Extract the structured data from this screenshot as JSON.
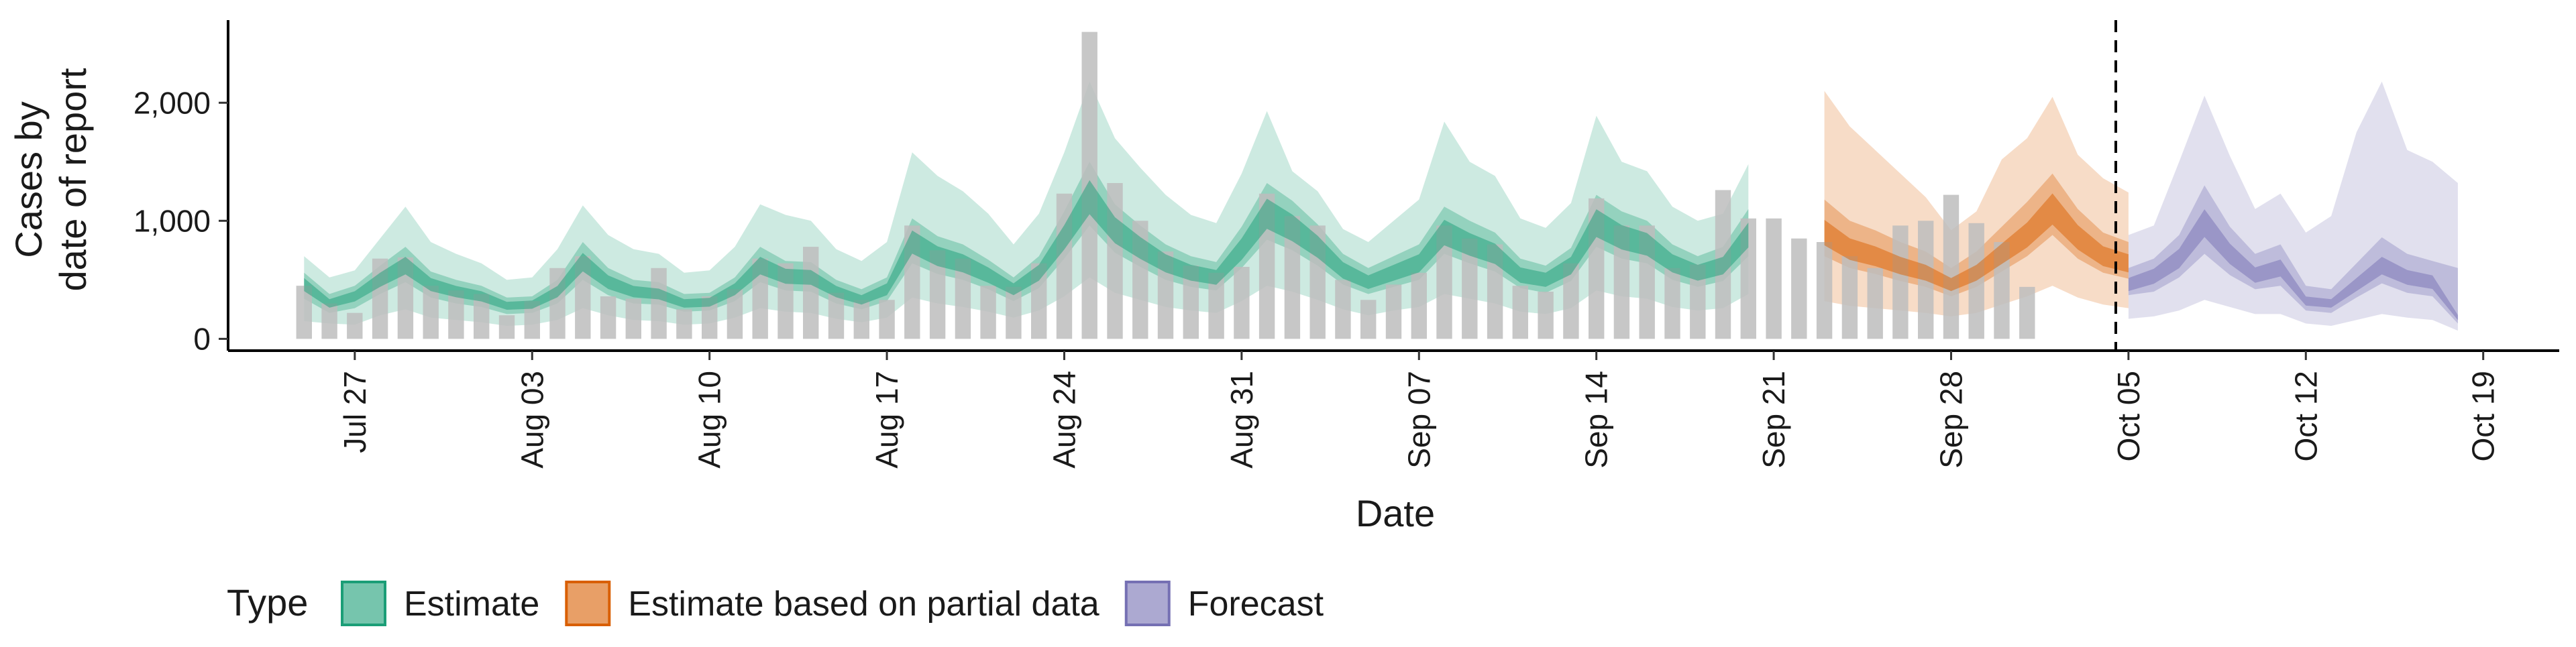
{
  "chart_data": {
    "type": "area",
    "xlabel": "Date",
    "ylabel_lines": [
      "Cases by",
      "date of report"
    ],
    "ylim": [
      -100,
      2700
    ],
    "y_ticks": [
      0,
      1000,
      2000
    ],
    "y_tick_labels": [
      "0",
      "1,000",
      "2,000"
    ],
    "x_ticks": [
      "2020-07-27",
      "2020-08-03",
      "2020-08-10",
      "2020-08-17",
      "2020-08-24",
      "2020-08-31",
      "2020-09-07",
      "2020-09-14",
      "2020-09-21",
      "2020-09-28",
      "2020-10-05",
      "2020-10-12",
      "2020-10-19"
    ],
    "x_tick_labels": [
      "Jul 27",
      "Aug 03",
      "Aug 10",
      "Aug 17",
      "Aug 24",
      "Aug 31",
      "Sep 07",
      "Sep 14",
      "Sep 21",
      "Sep 28",
      "Oct 05",
      "Oct 12",
      "Oct 19"
    ],
    "xlim": [
      "2020-07-22",
      "2020-10-22"
    ],
    "forecast_line_date": "2020-10-04.5",
    "grid": false,
    "legend_position": "bottom",
    "bars": {
      "start_date": "2020-07-25",
      "color": "#bdbdbd",
      "values": [
        450,
        300,
        220,
        680,
        690,
        450,
        410,
        380,
        200,
        320,
        600,
        700,
        360,
        340,
        600,
        250,
        360,
        420,
        680,
        640,
        780,
        390,
        330,
        330,
        960,
        750,
        680,
        450,
        440,
        640,
        1230,
        2600,
        1320,
        1000,
        740,
        620,
        560,
        610,
        1230,
        1040,
        960,
        500,
        330,
        460,
        560,
        960,
        850,
        800,
        450,
        400,
        640,
        1190,
        960,
        960,
        600,
        630,
        1260,
        1020,
        1020,
        850,
        820,
        700,
        600,
        960,
        1000,
        1220,
        980,
        820,
        440
      ]
    },
    "series": [
      {
        "name": "Estimate",
        "color": "#1b9e77",
        "start_date": "2020-07-25",
        "median": [
          460,
          300,
          360,
          500,
          620,
          460,
          400,
          360,
          280,
          290,
          400,
          650,
          480,
          400,
          380,
          300,
          310,
          420,
          620,
          530,
          520,
          400,
          330,
          420,
          820,
          700,
          640,
          540,
          420,
          560,
          860,
          1200,
          920,
          770,
          640,
          560,
          520,
          760,
          1060,
          940,
          780,
          580,
          480,
          560,
          640,
          900,
          800,
          720,
          540,
          500,
          620,
          980,
          860,
          800,
          640,
          560,
          620,
          880
        ],
        "lower90": [
          150,
          130,
          120,
          200,
          250,
          180,
          160,
          140,
          110,
          120,
          160,
          260,
          200,
          160,
          150,
          120,
          130,
          180,
          260,
          230,
          220,
          170,
          140,
          180,
          350,
          300,
          270,
          230,
          180,
          240,
          360,
          520,
          390,
          330,
          270,
          240,
          220,
          320,
          450,
          400,
          330,
          250,
          200,
          240,
          270,
          380,
          340,
          300,
          230,
          210,
          260,
          410,
          360,
          340,
          270,
          240,
          260,
          380
        ],
        "upper90": [
          700,
          520,
          580,
          850,
          1120,
          820,
          720,
          640,
          500,
          520,
          760,
          1130,
          880,
          760,
          720,
          560,
          580,
          780,
          1140,
          1050,
          1000,
          760,
          660,
          820,
          1580,
          1380,
          1250,
          1060,
          800,
          1060,
          1580,
          2180,
          1700,
          1450,
          1220,
          1050,
          980,
          1400,
          1930,
          1420,
          1250,
          930,
          820,
          1000,
          1180,
          1840,
          1500,
          1380,
          1020,
          940,
          1150,
          1890,
          1500,
          1420,
          1120,
          1000,
          1060,
          1480
        ],
        "lower50": [
          340,
          220,
          260,
          380,
          480,
          350,
          300,
          270,
          210,
          220,
          300,
          500,
          370,
          300,
          290,
          230,
          240,
          320,
          480,
          410,
          400,
          300,
          250,
          320,
          640,
          550,
          500,
          420,
          320,
          430,
          680,
          960,
          730,
          610,
          500,
          440,
          410,
          600,
          840,
          750,
          620,
          460,
          380,
          440,
          500,
          720,
          640,
          570,
          430,
          390,
          490,
          780,
          680,
          640,
          500,
          440,
          490,
          700
        ],
        "upper50": [
          560,
          380,
          450,
          620,
          780,
          570,
          500,
          450,
          350,
          360,
          500,
          820,
          600,
          500,
          480,
          380,
          390,
          520,
          780,
          660,
          650,
          500,
          420,
          520,
          1020,
          870,
          800,
          670,
          520,
          700,
          1080,
          1500,
          1140,
          960,
          800,
          700,
          650,
          950,
          1320,
          1170,
          970,
          720,
          600,
          700,
          800,
          1120,
          1000,
          900,
          680,
          620,
          770,
          1220,
          1080,
          1000,
          800,
          700,
          780,
          1100
        ]
      },
      {
        "name": "Estimate based on partial data",
        "color": "#d95f02",
        "start_date": "2020-09-23",
        "median": [
          900,
          760,
          700,
          620,
          560,
          460,
          560,
          720,
          880,
          1100,
          860,
          700,
          640
        ],
        "lower90": [
          320,
          280,
          260,
          240,
          220,
          190,
          220,
          290,
          360,
          450,
          350,
          290,
          260
        ],
        "upper90": [
          2100,
          1800,
          1600,
          1400,
          1200,
          920,
          1080,
          1520,
          1700,
          2050,
          1560,
          1360,
          1240
        ],
        "lower50": [
          700,
          600,
          550,
          490,
          440,
          360,
          440,
          570,
          700,
          880,
          680,
          560,
          510
        ],
        "upper50": [
          1180,
          1000,
          920,
          820,
          740,
          600,
          740,
          950,
          1160,
          1400,
          1100,
          900,
          820
        ]
      },
      {
        "name": "Forecast",
        "color": "#7570b3",
        "start_date": "2020-10-05",
        "median": [
          460,
          530,
          680,
          980,
          720,
          540,
          600,
          320,
          300,
          460,
          620,
          520,
          480,
          180
        ],
        "lower90": [
          170,
          190,
          240,
          330,
          270,
          210,
          210,
          130,
          110,
          160,
          210,
          180,
          160,
          70
        ],
        "upper90": [
          880,
          960,
          1500,
          2060,
          1550,
          1100,
          1230,
          900,
          1040,
          1750,
          2180,
          1600,
          1500,
          1320
        ],
        "lower50": [
          370,
          400,
          520,
          720,
          540,
          420,
          450,
          240,
          220,
          350,
          470,
          390,
          360,
          130
        ],
        "upper50": [
          600,
          680,
          880,
          1300,
          950,
          720,
          800,
          450,
          420,
          640,
          860,
          720,
          660,
          600
        ]
      }
    ],
    "legend": {
      "title": "Type",
      "items": [
        "Estimate",
        "Estimate based on partial data",
        "Forecast"
      ],
      "colors": [
        "#1b9e77",
        "#d95f02",
        "#7570b3"
      ]
    }
  }
}
